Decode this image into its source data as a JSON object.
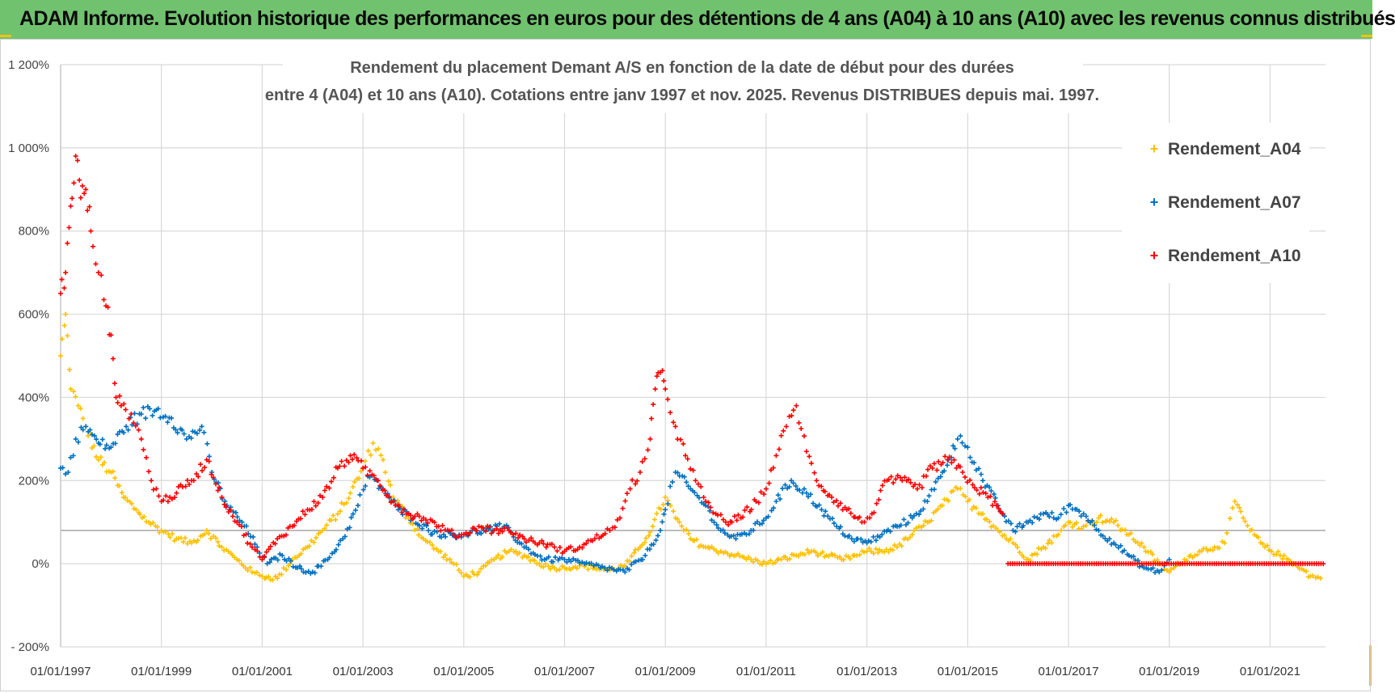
{
  "banner": {
    "title": "ADAM Informe. Evolution historique des performances en euros pour des détentions de 4 ans (A04) à 10 ans (A10) avec les revenus connus distribués",
    "color": "#71c26f"
  },
  "chart_data": {
    "type": "scatter",
    "title_line1": "Rendement du placement Demant A/S en fonction de la date de début pour des durées",
    "title_line2": "entre 4 (A04) et 10 ans (A10). Cotations entre janv 1997 et nov. 2025. Revenus DISTRIBUES depuis mai. 1997.",
    "xlabel": "",
    "ylabel": "",
    "xlim": [
      1997.0,
      2022.1
    ],
    "ylim": [
      -200,
      1200
    ],
    "y_ticks": [
      -200,
      0,
      200,
      400,
      600,
      800,
      1000,
      1200
    ],
    "y_tick_labels": [
      "- 200%",
      "0%",
      "200%",
      "400%",
      "600%",
      "800%",
      "1 000%",
      "1 200%"
    ],
    "x_ticks": [
      1997,
      1999,
      2001,
      2003,
      2005,
      2007,
      2009,
      2011,
      2013,
      2015,
      2017,
      2019,
      2021
    ],
    "x_tick_labels": [
      "01/01/1997",
      "01/01/1999",
      "01/01/2001",
      "01/01/2003",
      "01/01/2005",
      "01/01/2007",
      "01/01/2009",
      "01/01/2011",
      "01/01/2013",
      "01/01/2015",
      "01/01/2017",
      "01/01/2019",
      "01/01/2021"
    ],
    "reference_line_y": 80,
    "legend_position": "top-right",
    "grid": true,
    "marker": "+",
    "series": [
      {
        "name": "Rendement_A04",
        "color": "#ffc000",
        "x": [
          1997.0,
          1997.1,
          1997.2,
          1997.35,
          1997.5,
          1997.75,
          1998.0,
          1998.25,
          1998.5,
          1998.75,
          1999.0,
          1999.3,
          1999.6,
          1999.9,
          2000.2,
          2000.5,
          2000.8,
          2001.0,
          2001.3,
          2001.6,
          2001.9,
          2002.2,
          2002.5,
          2002.75,
          2003.0,
          2003.2,
          2003.4,
          2003.6,
          2003.9,
          2004.2,
          2004.5,
          2004.8,
          2005.0,
          2005.3,
          2005.6,
          2005.9,
          2006.2,
          2006.5,
          2006.8,
          2007.0,
          2007.3,
          2007.6,
          2007.9,
          2008.2,
          2008.5,
          2008.75,
          2009.0,
          2009.2,
          2009.5,
          2009.8,
          2010.1,
          2010.4,
          2010.7,
          2011.0,
          2011.3,
          2011.6,
          2011.9,
          2012.2,
          2012.5,
          2012.8,
          2013.0,
          2013.3,
          2013.6,
          2013.9,
          2014.2,
          2014.5,
          2014.8,
          2015.0,
          2015.3,
          2015.6,
          2015.9,
          2016.2,
          2016.5,
          2016.8,
          2017.0,
          2017.3,
          2017.6,
          2017.9,
          2018.2,
          2018.5,
          2018.8,
          2019.0,
          2019.3,
          2019.6,
          2019.9,
          2020.1,
          2020.3,
          2020.6,
          2020.9,
          2021.2,
          2021.5,
          2021.8,
          2022.0
        ],
        "y": [
          500,
          600,
          420,
          380,
          330,
          250,
          220,
          160,
          130,
          100,
          80,
          60,
          50,
          80,
          40,
          10,
          -20,
          -30,
          -35,
          10,
          40,
          80,
          120,
          170,
          230,
          290,
          250,
          160,
          110,
          60,
          30,
          0,
          -30,
          -20,
          10,
          30,
          20,
          0,
          -10,
          -10,
          -5,
          -10,
          -15,
          -5,
          40,
          90,
          160,
          110,
          60,
          40,
          30,
          20,
          10,
          0,
          10,
          20,
          30,
          20,
          10,
          20,
          30,
          30,
          40,
          70,
          100,
          140,
          180,
          150,
          120,
          80,
          50,
          10,
          40,
          70,
          100,
          90,
          110,
          100,
          70,
          40,
          0,
          -20,
          10,
          30,
          40,
          50,
          150,
          80,
          40,
          20,
          0,
          -30,
          -35
        ]
      },
      {
        "name": "Rendement_A07",
        "color": "#0070c0",
        "x": [
          1997.0,
          1997.15,
          1997.3,
          1997.5,
          1997.75,
          1998.0,
          1998.3,
          1998.6,
          1998.9,
          1999.2,
          1999.5,
          1999.8,
          2000.0,
          2000.3,
          2000.6,
          2000.9,
          2001.1,
          2001.4,
          2001.7,
          2002.0,
          2002.3,
          2002.6,
          2002.9,
          2003.1,
          2003.4,
          2003.7,
          2004.0,
          2004.3,
          2004.6,
          2005.0,
          2005.4,
          2005.8,
          2006.2,
          2006.6,
          2007.0,
          2007.4,
          2007.8,
          2008.2,
          2008.6,
          2008.9,
          2009.0,
          2009.2,
          2009.5,
          2009.8,
          2010.1,
          2010.4,
          2010.7,
          2011.0,
          2011.2,
          2011.5,
          2011.8,
          2012.1,
          2012.4,
          2012.7,
          2013.0,
          2013.3,
          2013.6,
          2013.9,
          2014.2,
          2014.5,
          2014.8,
          2015.0,
          2015.3,
          2015.6,
          2015.9,
          2016.2,
          2016.5,
          2016.8,
          2017.0,
          2017.3,
          2017.6,
          2017.9,
          2018.2,
          2018.5,
          2018.8,
          2019.0
        ],
        "y": [
          230,
          220,
          300,
          330,
          290,
          280,
          330,
          360,
          370,
          350,
          300,
          330,
          220,
          140,
          100,
          40,
          0,
          20,
          -10,
          -20,
          10,
          60,
          140,
          210,
          180,
          130,
          110,
          80,
          70,
          70,
          80,
          90,
          40,
          10,
          10,
          0,
          -10,
          -20,
          20,
          80,
          130,
          220,
          180,
          140,
          80,
          60,
          80,
          110,
          150,
          200,
          170,
          130,
          90,
          60,
          50,
          70,
          90,
          110,
          150,
          220,
          300,
          280,
          200,
          140,
          80,
          100,
          120,
          110,
          140,
          120,
          80,
          50,
          20,
          -10,
          -20,
          10
        ]
      },
      {
        "name": "Rendement_A10",
        "color": "#ff0000",
        "x": [
          1997.0,
          1997.1,
          1997.2,
          1997.3,
          1997.4,
          1997.5,
          1997.6,
          1997.75,
          1997.9,
          1998.0,
          1998.1,
          1998.2,
          1998.4,
          1998.6,
          1998.8,
          1999.0,
          1999.3,
          1999.6,
          1999.9,
          2000.2,
          2000.5,
          2000.8,
          2001.0,
          2001.3,
          2001.6,
          2001.9,
          2002.2,
          2002.5,
          2002.75,
          2003.0,
          2003.3,
          2003.6,
          2003.9,
          2004.2,
          2004.5,
          2004.8,
          2005.0,
          2005.3,
          2005.6,
          2005.9,
          2006.2,
          2006.5,
          2006.8,
          2007.0,
          2007.3,
          2007.6,
          2007.9,
          2008.1,
          2008.3,
          2008.5,
          2008.7,
          2008.8,
          2008.9,
          2009.0,
          2009.2,
          2009.4,
          2009.6,
          2009.8,
          2010.0,
          2010.2,
          2010.5,
          2010.8,
          2011.0,
          2011.2,
          2011.4,
          2011.6,
          2011.8,
          2012.0,
          2012.3,
          2012.6,
          2012.9,
          2013.1,
          2013.4,
          2013.7,
          2014.0,
          2014.3,
          2014.6,
          2014.9,
          2015.1,
          2015.4,
          2015.7
        ],
        "y": [
          650,
          700,
          860,
          980,
          880,
          900,
          800,
          700,
          620,
          550,
          400,
          380,
          360,
          300,
          200,
          150,
          170,
          200,
          250,
          160,
          100,
          40,
          10,
          60,
          90,
          130,
          160,
          230,
          260,
          230,
          200,
          150,
          120,
          110,
          90,
          70,
          70,
          90,
          80,
          80,
          60,
          50,
          40,
          30,
          40,
          60,
          80,
          110,
          180,
          220,
          300,
          420,
          460,
          420,
          330,
          260,
          200,
          150,
          120,
          100,
          110,
          150,
          180,
          260,
          330,
          380,
          270,
          200,
          160,
          130,
          100,
          120,
          200,
          200,
          180,
          230,
          250,
          220,
          190,
          160,
          120
        ]
      },
      {
        "name": "Rendement_A10",
        "color": "#ff0000",
        "x": [
          2015.8,
          2022.1
        ],
        "y": [
          0,
          0
        ],
        "flat": true
      }
    ]
  }
}
